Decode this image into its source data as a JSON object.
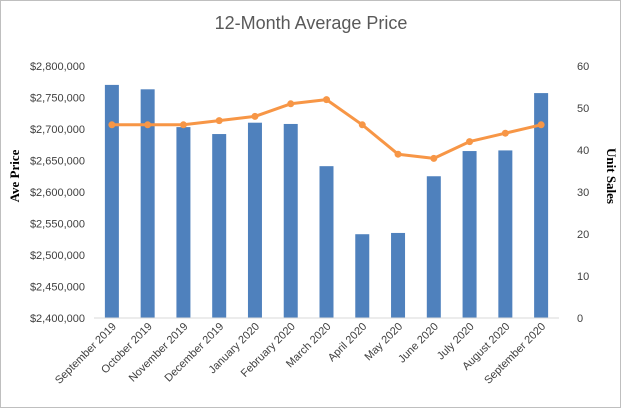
{
  "chart_data": {
    "type": "bar",
    "title": "12-Month Average Price",
    "categories": [
      "September 2019",
      "October 2019",
      "November 2019",
      "December 2019",
      "January 2020",
      "February 2020",
      "March 2020",
      "April 2020",
      "May 2020",
      "June 2020",
      "July 2020",
      "August 2020",
      "September 2020"
    ],
    "y_left": {
      "label": "Ave Price",
      "range": [
        2400000,
        2800000
      ],
      "ticks": [
        "$2,400,000",
        "$2,450,000",
        "$2,500,000",
        "$2,550,000",
        "$2,600,000",
        "$2,650,000",
        "$2,700,000",
        "$2,750,000",
        "$2,800,000"
      ],
      "tick_values": [
        2400000,
        2450000,
        2500000,
        2550000,
        2600000,
        2650000,
        2700000,
        2750000,
        2800000
      ]
    },
    "y_right": {
      "label": "Unit Sales",
      "range": [
        0,
        60
      ],
      "ticks": [
        "0",
        "10",
        "20",
        "30",
        "40",
        "50",
        "60"
      ],
      "tick_values": [
        0,
        10,
        20,
        30,
        40,
        50,
        60
      ]
    },
    "series": [
      {
        "type": "bar",
        "axis": "left",
        "color": "#4f81bd",
        "values": [
          2770000,
          2763000,
          2703000,
          2692000,
          2710000,
          2708000,
          2641000,
          2533000,
          2535000,
          2625000,
          2665000,
          2666000,
          2757000
        ]
      },
      {
        "type": "line",
        "axis": "right",
        "color": "#f79646",
        "values": [
          46,
          46,
          46,
          47,
          48,
          51,
          52,
          46,
          39,
          38,
          42,
          44,
          46
        ]
      }
    ],
    "grid": false,
    "legend": "none"
  }
}
